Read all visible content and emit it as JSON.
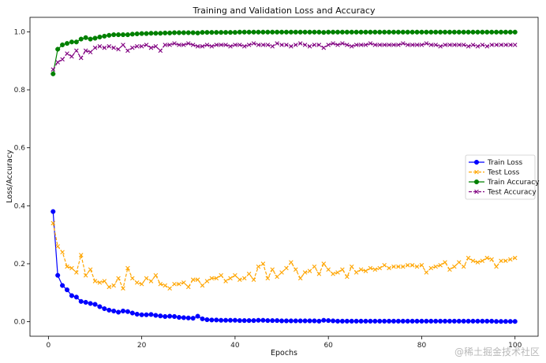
{
  "chart_data": {
    "type": "line",
    "title": "Training and Validation Loss and Accuracy",
    "xlabel": "Epochs",
    "ylabel": "Loss/Accuracy",
    "xlim": [
      -3.95,
      104.95
    ],
    "ylim": [
      -0.05,
      1.05
    ],
    "xticks": [
      0,
      20,
      40,
      60,
      80,
      100
    ],
    "yticks": [
      0.0,
      0.2,
      0.4,
      0.6,
      0.8,
      1.0
    ],
    "legend_position": "center-right",
    "x": [
      1,
      2,
      3,
      4,
      5,
      6,
      7,
      8,
      9,
      10,
      11,
      12,
      13,
      14,
      15,
      16,
      17,
      18,
      19,
      20,
      21,
      22,
      23,
      24,
      25,
      26,
      27,
      28,
      29,
      30,
      31,
      32,
      33,
      34,
      35,
      36,
      37,
      38,
      39,
      40,
      41,
      42,
      43,
      44,
      45,
      46,
      47,
      48,
      49,
      50,
      51,
      52,
      53,
      54,
      55,
      56,
      57,
      58,
      59,
      60,
      61,
      62,
      63,
      64,
      65,
      66,
      67,
      68,
      69,
      70,
      71,
      72,
      73,
      74,
      75,
      76,
      77,
      78,
      79,
      80,
      81,
      82,
      83,
      84,
      85,
      86,
      87,
      88,
      89,
      90,
      91,
      92,
      93,
      94,
      95,
      96,
      97,
      98,
      99,
      100
    ],
    "series": [
      {
        "name": "Train Loss",
        "color": "#0000ff",
        "marker": "circle",
        "linestyle": "solid",
        "values": [
          0.38,
          0.16,
          0.125,
          0.11,
          0.09,
          0.085,
          0.07,
          0.067,
          0.063,
          0.06,
          0.052,
          0.045,
          0.04,
          0.037,
          0.033,
          0.037,
          0.035,
          0.03,
          0.026,
          0.024,
          0.024,
          0.025,
          0.022,
          0.02,
          0.018,
          0.019,
          0.018,
          0.015,
          0.014,
          0.013,
          0.012,
          0.019,
          0.01,
          0.007,
          0.006,
          0.006,
          0.005,
          0.005,
          0.005,
          0.005,
          0.004,
          0.004,
          0.004,
          0.004,
          0.005,
          0.005,
          0.004,
          0.004,
          0.004,
          0.003,
          0.003,
          0.003,
          0.003,
          0.003,
          0.003,
          0.003,
          0.003,
          0.002,
          0.005,
          0.004,
          0.003,
          0.002,
          0.002,
          0.002,
          0.002,
          0.002,
          0.002,
          0.002,
          0.002,
          0.002,
          0.002,
          0.002,
          0.002,
          0.002,
          0.002,
          0.002,
          0.002,
          0.002,
          0.002,
          0.002,
          0.002,
          0.002,
          0.002,
          0.002,
          0.002,
          0.002,
          0.002,
          0.002,
          0.002,
          0.002,
          0.002,
          0.002,
          0.002,
          0.002,
          0.002,
          0.001,
          0.001,
          0.001,
          0.001,
          0.001
        ]
      },
      {
        "name": "Test Loss",
        "color": "#ffa500",
        "marker": "x",
        "linestyle": "dashed",
        "values": [
          0.34,
          0.26,
          0.24,
          0.19,
          0.185,
          0.17,
          0.23,
          0.16,
          0.18,
          0.14,
          0.135,
          0.14,
          0.12,
          0.125,
          0.15,
          0.115,
          0.185,
          0.15,
          0.135,
          0.13,
          0.15,
          0.14,
          0.16,
          0.13,
          0.125,
          0.115,
          0.13,
          0.13,
          0.135,
          0.12,
          0.145,
          0.145,
          0.125,
          0.14,
          0.15,
          0.15,
          0.16,
          0.14,
          0.15,
          0.16,
          0.145,
          0.15,
          0.165,
          0.145,
          0.19,
          0.2,
          0.15,
          0.18,
          0.155,
          0.17,
          0.185,
          0.205,
          0.18,
          0.15,
          0.17,
          0.175,
          0.19,
          0.165,
          0.2,
          0.18,
          0.165,
          0.17,
          0.18,
          0.155,
          0.19,
          0.17,
          0.18,
          0.175,
          0.185,
          0.18,
          0.185,
          0.195,
          0.185,
          0.19,
          0.19,
          0.19,
          0.195,
          0.195,
          0.19,
          0.195,
          0.17,
          0.185,
          0.19,
          0.195,
          0.205,
          0.18,
          0.19,
          0.205,
          0.19,
          0.22,
          0.21,
          0.205,
          0.21,
          0.22,
          0.215,
          0.19,
          0.21,
          0.21,
          0.215,
          0.22
        ]
      },
      {
        "name": "Train Accuracy",
        "color": "#008000",
        "marker": "circle",
        "linestyle": "solid",
        "values": [
          0.855,
          0.94,
          0.955,
          0.96,
          0.965,
          0.965,
          0.975,
          0.98,
          0.975,
          0.978,
          0.982,
          0.985,
          0.988,
          0.99,
          0.99,
          0.99,
          0.99,
          0.992,
          0.993,
          0.994,
          0.994,
          0.995,
          0.995,
          0.995,
          0.996,
          0.996,
          0.997,
          0.997,
          0.997,
          0.997,
          0.997,
          0.996,
          0.998,
          0.998,
          0.998,
          0.998,
          0.998,
          0.998,
          0.998,
          0.998,
          0.999,
          0.999,
          0.999,
          0.999,
          0.999,
          0.999,
          0.999,
          0.999,
          0.999,
          0.999,
          0.999,
          0.999,
          0.999,
          0.999,
          0.999,
          0.999,
          0.999,
          0.999,
          0.998,
          0.999,
          0.999,
          0.999,
          0.999,
          0.999,
          0.999,
          0.999,
          0.999,
          0.999,
          0.999,
          0.999,
          0.999,
          0.999,
          0.999,
          0.999,
          0.999,
          0.999,
          0.999,
          0.999,
          0.999,
          0.999,
          0.999,
          0.999,
          0.999,
          0.999,
          0.999,
          0.999,
          0.999,
          0.999,
          0.999,
          0.999,
          0.999,
          0.999,
          0.999,
          0.999,
          0.999,
          0.999,
          0.999,
          0.999,
          0.999,
          0.999
        ]
      },
      {
        "name": "Test Accuracy",
        "color": "#800080",
        "marker": "x",
        "linestyle": "dashed",
        "values": [
          0.87,
          0.895,
          0.905,
          0.925,
          0.915,
          0.935,
          0.91,
          0.935,
          0.93,
          0.945,
          0.95,
          0.945,
          0.95,
          0.945,
          0.94,
          0.955,
          0.935,
          0.945,
          0.95,
          0.95,
          0.955,
          0.945,
          0.95,
          0.935,
          0.955,
          0.955,
          0.96,
          0.955,
          0.955,
          0.96,
          0.955,
          0.95,
          0.95,
          0.955,
          0.95,
          0.955,
          0.955,
          0.955,
          0.95,
          0.955,
          0.955,
          0.95,
          0.955,
          0.96,
          0.955,
          0.955,
          0.955,
          0.95,
          0.96,
          0.955,
          0.955,
          0.95,
          0.955,
          0.96,
          0.955,
          0.95,
          0.955,
          0.955,
          0.945,
          0.955,
          0.96,
          0.955,
          0.96,
          0.955,
          0.95,
          0.955,
          0.955,
          0.955,
          0.96,
          0.955,
          0.955,
          0.955,
          0.955,
          0.955,
          0.955,
          0.96,
          0.955,
          0.955,
          0.955,
          0.955,
          0.96,
          0.955,
          0.955,
          0.95,
          0.955,
          0.955,
          0.955,
          0.955,
          0.955,
          0.95,
          0.955,
          0.95,
          0.955,
          0.95,
          0.955,
          0.955,
          0.955,
          0.955,
          0.955,
          0.955
        ]
      }
    ]
  },
  "watermark": "@稀土掘金技术社区"
}
